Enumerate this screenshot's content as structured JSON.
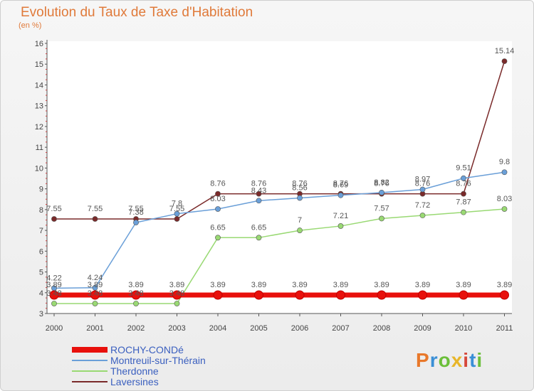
{
  "title": "Evolution du Taux de Taxe d'Habitation",
  "subtitle": "(en %)",
  "brand": {
    "text": "Proxiti",
    "colors": [
      "#e8782a",
      "#3a8fd6",
      "#6bbf3a",
      "#e8b62a",
      "#d6473a",
      "#3a8fd6",
      "#6bbf3a"
    ]
  },
  "chart_data": {
    "type": "line",
    "title": "Evolution du Taux de Taxe d'Habitation",
    "subtitle": "(en %)",
    "x": [
      "2000",
      "2001",
      "2002",
      "2003",
      "2004",
      "2005",
      "2006",
      "2007",
      "2008",
      "2009",
      "2010",
      "2011"
    ],
    "ylim": [
      3,
      16
    ],
    "yticks": [
      3,
      4,
      5,
      6,
      7,
      8,
      9,
      10,
      11,
      12,
      13,
      14,
      15,
      16
    ],
    "grid": false,
    "legend_position": "bottom-left",
    "series": [
      {
        "name": "ROCHY-CONDé",
        "color": "#e8100c",
        "values": [
          3.89,
          3.89,
          3.89,
          3.89,
          3.89,
          3.89,
          3.89,
          3.89,
          3.89,
          3.89,
          3.89,
          3.89
        ],
        "labels": [
          "3.89",
          "3.89",
          "3.89",
          "3.89",
          "3.89",
          "3.89",
          "3.89",
          "3.89",
          "3.89",
          "3.89",
          "3.89",
          "3.89"
        ]
      },
      {
        "name": "Montreuil-sur-Thérain",
        "color": "#6a9fd8",
        "values": [
          4.22,
          4.24,
          7.38,
          7.8,
          8.03,
          8.43,
          8.56,
          8.69,
          8.82,
          8.97,
          9.51,
          9.8
        ],
        "labels": [
          "4.22",
          "4.24",
          "7.38",
          "7.8",
          "8.03",
          "8.43",
          "8.56",
          "8.69",
          "8.82",
          "8.97",
          "9.51",
          "9.8"
        ]
      },
      {
        "name": "Therdonne",
        "color": "#99d973",
        "values": [
          3.48,
          3.48,
          3.48,
          3.48,
          6.65,
          6.65,
          7,
          7.21,
          7.57,
          7.72,
          7.87,
          8.03
        ],
        "labels": [
          "3.48",
          "3.48",
          "3.48",
          "3.48",
          "6.65",
          "6.65",
          "7",
          "7.21",
          "7.57",
          "7.72",
          "7.87",
          "8.03"
        ]
      },
      {
        "name": "Laversines",
        "color": "#7a2a2a",
        "values": [
          7.55,
          7.55,
          7.55,
          7.55,
          8.76,
          8.76,
          8.76,
          8.76,
          8.76,
          8.76,
          8.76,
          15.14
        ],
        "labels": [
          "7.55",
          "7.55",
          "7.55",
          "7.55",
          "8.76",
          "8.76",
          "8.76",
          "8.76",
          "8.76",
          "8.76",
          "8.76",
          "15.14"
        ]
      }
    ]
  }
}
